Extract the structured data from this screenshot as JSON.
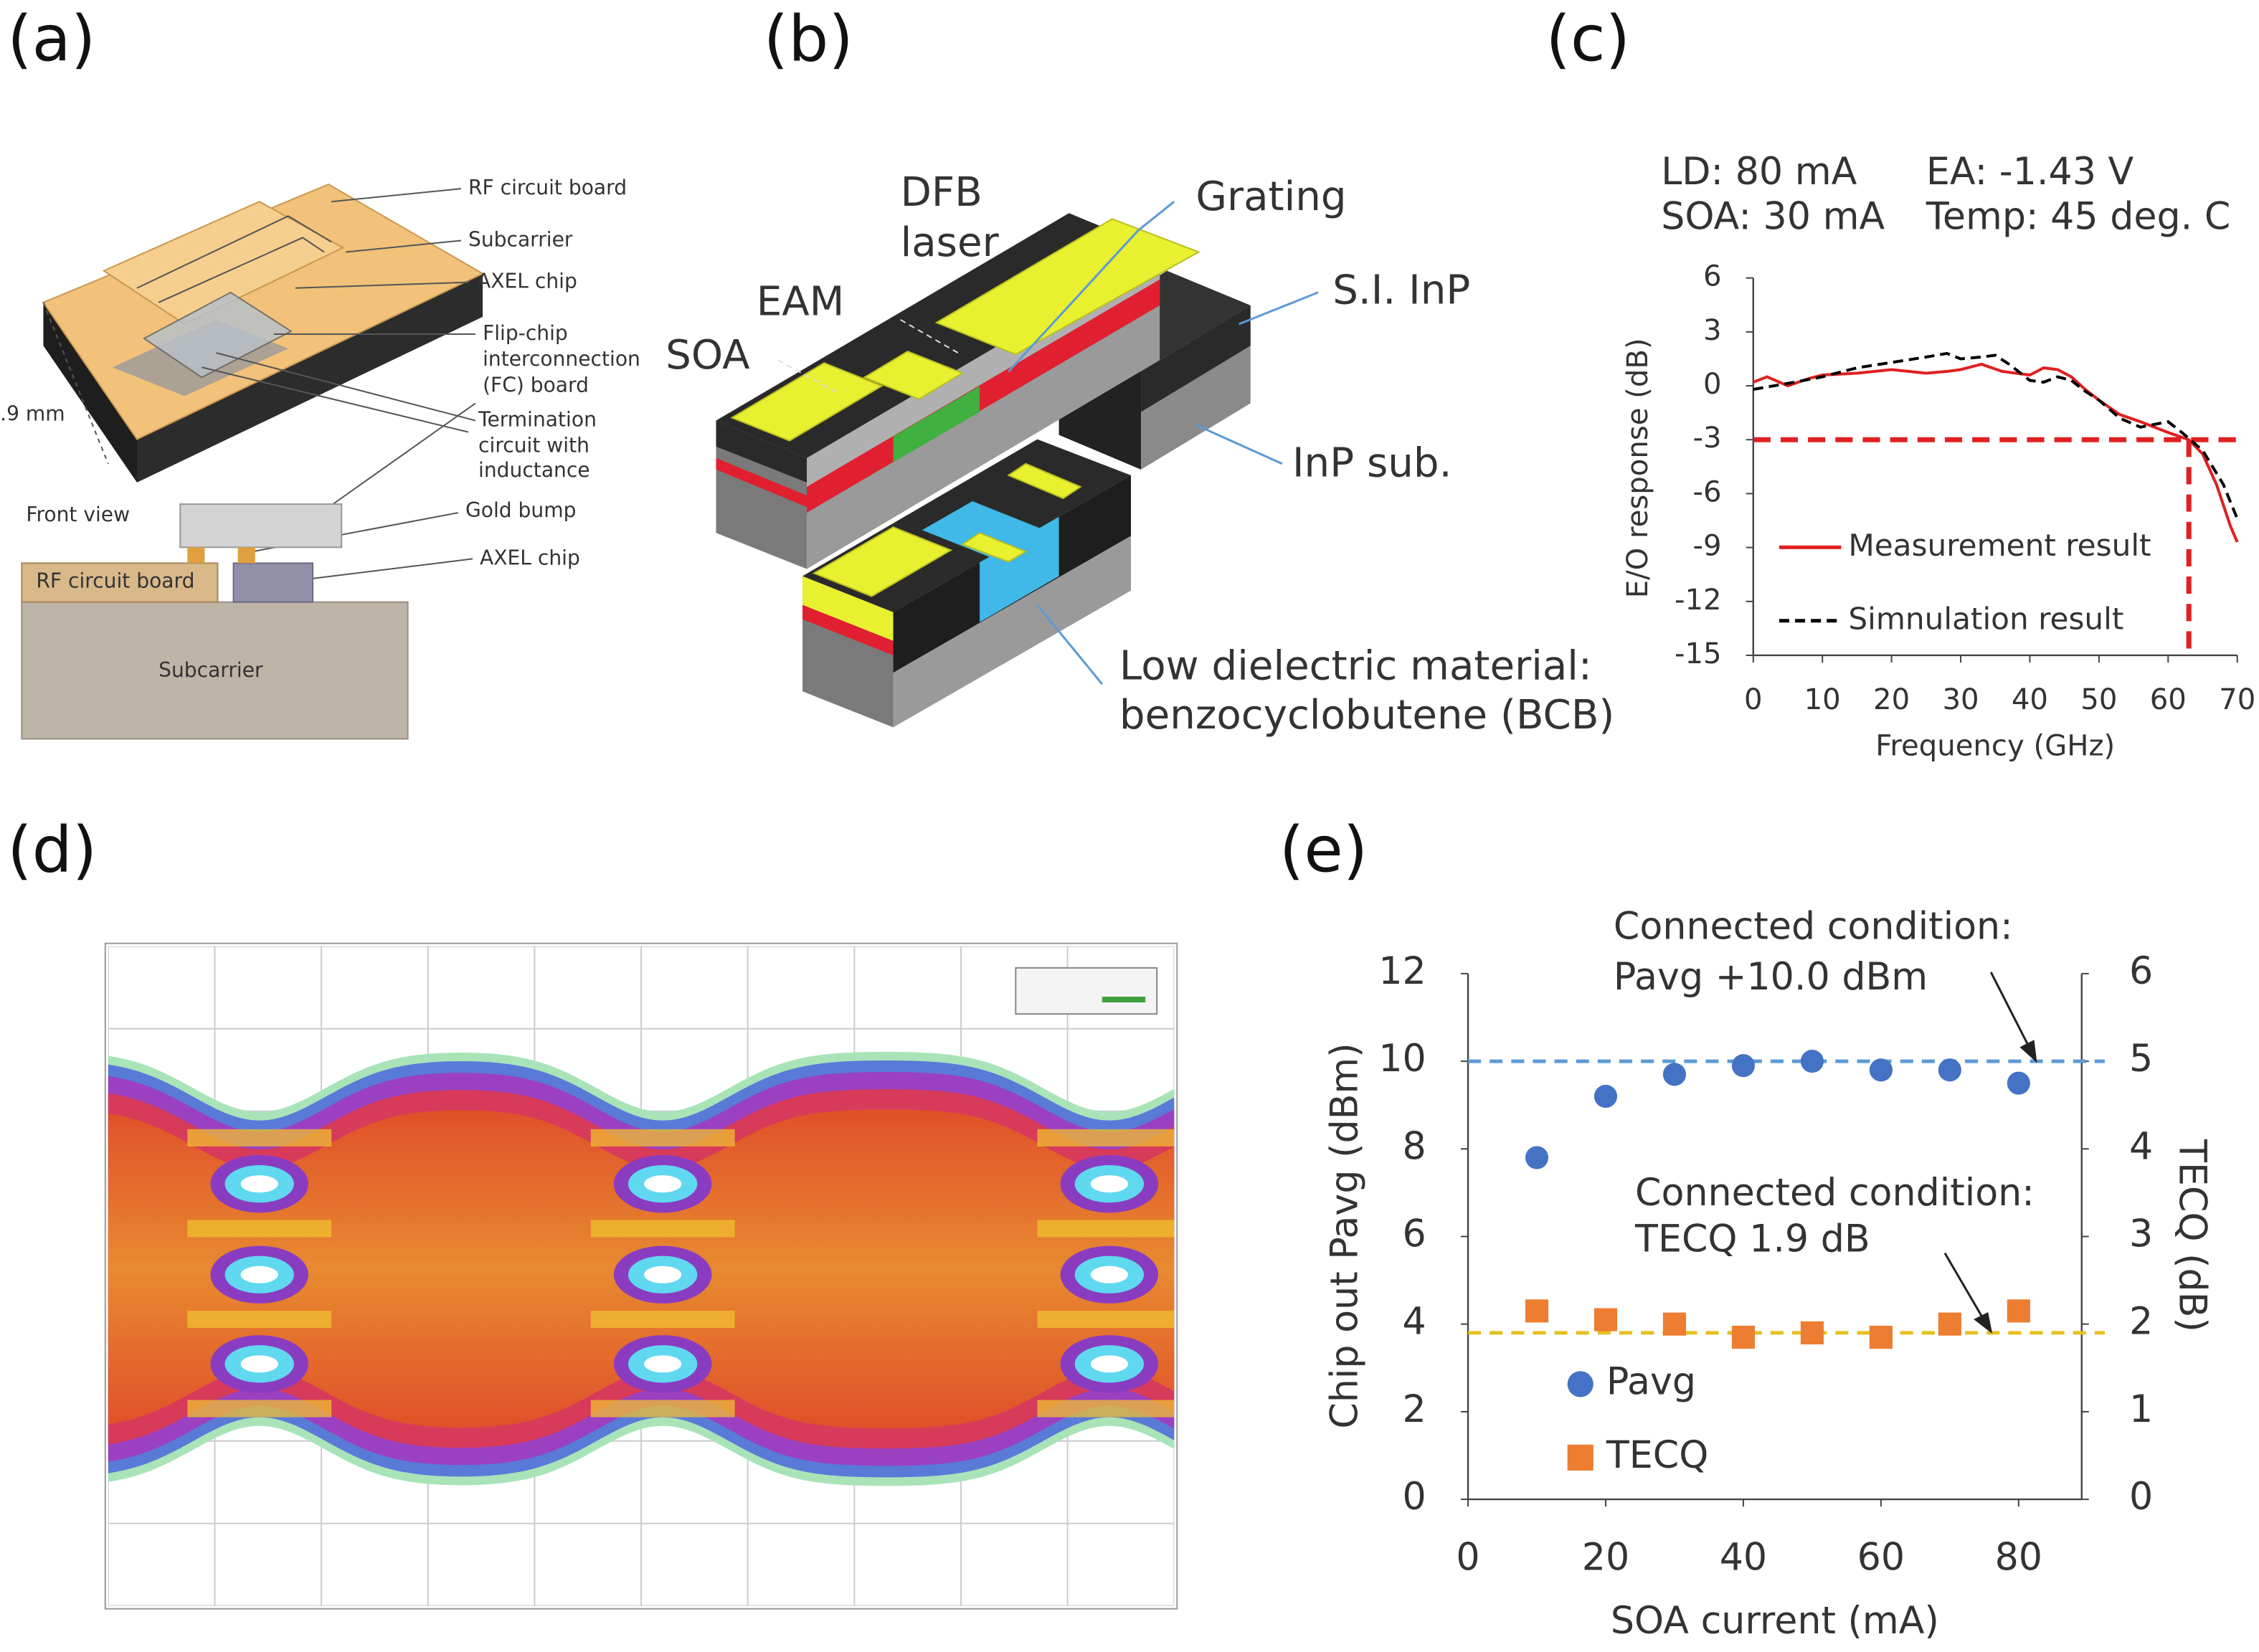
{
  "panels": {
    "a": {
      "label": "(a)",
      "texts": [
        "RF circuit board",
        "Subcarrier",
        "AXEL chip",
        "Flip-chip",
        "interconnection",
        "(FC) board",
        "Termination",
        "circuit with",
        "inductance",
        "Front view",
        "Gold bump",
        "AXEL chip",
        "RF circuit board",
        "Subcarrier",
        ".9 mm"
      ]
    },
    "b": {
      "label": "(b)",
      "texts": [
        "DFB",
        "laser",
        "Grating",
        "EAM",
        "SOA",
        "S.I. InP",
        "InP sub.",
        "Low dielectric material:",
        "benzocyclobutene (BCB)"
      ]
    },
    "d": {
      "label": "(d)"
    }
  },
  "chart_data": [
    {
      "type": "line",
      "panel_label": "(c)",
      "annotations": [
        "LD: 80 mA",
        "EA: -1.43 V",
        "SOA: 30 mA",
        "Temp: 45 deg. C"
      ],
      "xlabel": "Frequency (GHz)",
      "ylabel": "E/O response (dB)",
      "xlim": [
        0,
        70
      ],
      "xticks": [
        0,
        10,
        20,
        30,
        40,
        50,
        60,
        70
      ],
      "ylim": [
        -15,
        6
      ],
      "yticks": [
        -15,
        -12,
        -9,
        -6,
        -3,
        0,
        3,
        6
      ],
      "series": [
        {
          "name": "Measurement result",
          "color": "#e02020",
          "style": "solid",
          "x": [
            0,
            2,
            5,
            8,
            10,
            15,
            20,
            25,
            28,
            30,
            33,
            36,
            38,
            40,
            42,
            44,
            46,
            48,
            50,
            53,
            56,
            60,
            63,
            65,
            67,
            69,
            70
          ],
          "values": [
            0.2,
            0.5,
            0,
            0.4,
            0.6,
            0.7,
            0.9,
            0.7,
            0.8,
            0.9,
            1.2,
            0.8,
            0.7,
            0.6,
            1.0,
            0.9,
            0.5,
            -0.2,
            -0.8,
            -1.6,
            -2.0,
            -2.6,
            -3.0,
            -3.8,
            -5.5,
            -7.8,
            -8.7
          ]
        },
        {
          "name": "Simnulation result",
          "color": "#000000",
          "style": "dashed",
          "x": [
            0,
            3,
            6,
            10,
            15,
            20,
            25,
            28,
            30,
            33,
            35,
            37,
            40,
            42,
            44,
            46,
            48,
            50,
            53,
            56,
            60,
            62,
            65,
            68,
            70
          ],
          "values": [
            -0.2,
            0,
            0.2,
            0.5,
            1.0,
            1.3,
            1.6,
            1.8,
            1.5,
            1.6,
            1.7,
            1.2,
            0.3,
            0.2,
            0.5,
            0.3,
            -0.3,
            -0.8,
            -1.8,
            -2.3,
            -2.0,
            -2.6,
            -3.6,
            -5.5,
            -7.4
          ]
        }
      ],
      "cutoff": {
        "x": 63,
        "y": -3,
        "color": "#e02020"
      }
    },
    {
      "type": "scatter",
      "panel_label": "(e)",
      "annotations": [
        "Connected condition:",
        "Pavg +10.0 dBm",
        "Connected condition:",
        "TECQ 1.9 dB"
      ],
      "xlabel": "SOA current (mA)",
      "ylabel": "Chip out Pavg (dBm)",
      "y2label": "TECQ (dB)",
      "xlim": [
        0,
        90
      ],
      "xticks": [
        0,
        20,
        40,
        60,
        80
      ],
      "ylim": [
        0,
        12
      ],
      "yticks": [
        0,
        2,
        4,
        6,
        8,
        10,
        12
      ],
      "y2lim": [
        0,
        6
      ],
      "y2ticks": [
        0,
        1,
        2,
        3,
        4,
        5,
        6
      ],
      "series": [
        {
          "name": "Pavg",
          "color": "#4472c4",
          "marker": "circle",
          "x": [
            10,
            20,
            30,
            40,
            50,
            60,
            70,
            80
          ],
          "values": [
            7.8,
            9.2,
            9.7,
            9.9,
            10.0,
            9.8,
            9.8,
            9.5
          ]
        },
        {
          "name": "TECQ",
          "color": "#ed7d31",
          "marker": "square",
          "axis": "y2",
          "x": [
            10,
            20,
            30,
            40,
            50,
            60,
            70,
            80
          ],
          "values": [
            2.15,
            2.05,
            2.0,
            1.85,
            1.9,
            1.85,
            2.0,
            2.15
          ]
        }
      ],
      "reference_lines": [
        {
          "value": 10.0,
          "axis": "y",
          "color": "#5b9bd5"
        },
        {
          "value": 1.9,
          "axis": "y2",
          "color": "#e6c020"
        }
      ]
    }
  ]
}
